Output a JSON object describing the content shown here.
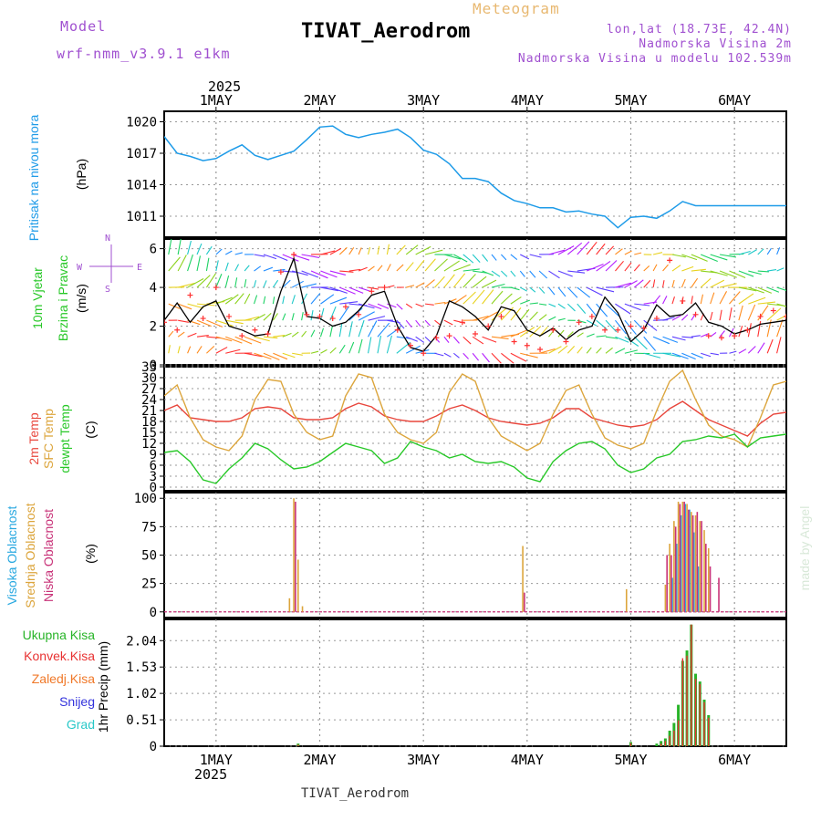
{
  "header": {
    "model_label": "Model",
    "model_name": "wrf-nmm_v3.9.1 e1km",
    "product": "Meteogram",
    "station": "TIVAT_Aerodrom",
    "lonlat": "lon,lat (18.73E, 42.4N)",
    "altitude": "Nadmorska Visina 2m",
    "model_altitude": "Nadmorska Visina u modelu 102.539m"
  },
  "footer": {
    "station": "TIVAT_Aerodrom"
  },
  "watermark": "made by Angel",
  "time_axis": {
    "year": "2025",
    "days": [
      "1MAY",
      "2MAY",
      "3MAY",
      "4MAY",
      "5MAY",
      "6MAY"
    ],
    "range_hours": [
      -12,
      132
    ],
    "day_start_hours": [
      0,
      24,
      48,
      72,
      96,
      120
    ]
  },
  "labels": {
    "pressure": [
      "Pritisak na nivou mora"
    ],
    "pressure_unit": "(hPa)",
    "wind": [
      "10m Vjetar",
      "Brzina i Pravac"
    ],
    "wind_unit": "(m/s)",
    "compass": {
      "n": "N",
      "s": "S",
      "e": "E",
      "w": "W"
    },
    "temp": [
      "2m Temp",
      "SFC Temp",
      "dewpt Temp"
    ],
    "temp_unit": "(C)",
    "cloud": [
      "Visoka Oblacnost",
      "Srednja Oblacnost",
      "Niska Oblacnost"
    ],
    "cloud_unit": "(%)",
    "precip": [
      "Ukupna Kisa",
      "Konvek.Kisa",
      "Zaledj.Kisa",
      "Snijeg",
      "Grad"
    ],
    "precip_unit": "1hr Precip (mm)"
  },
  "colors": {
    "pressure": "#1e9be8",
    "temp2m": "#e8463c",
    "sfc": "#dca53c",
    "dewpt": "#28c828",
    "wind_speed": "#000000",
    "gust": "#ff3030",
    "high_cloud": "#28a8e0",
    "mid_cloud": "#dca53c",
    "low_cloud": "#c83278",
    "precip_total": "#28b428",
    "precip_conv": "#e83232",
    "precip_frz": "#f07828",
    "precip_snow": "#3232dc",
    "precip_hail": "#28c8c8",
    "title": "#000000",
    "purple": "#a050d0"
  },
  "chart_data": [
    {
      "type": "line",
      "name_key": "pressure",
      "ylim": [
        1009,
        1021
      ],
      "yticks": [
        "1011",
        "1014",
        "1017",
        "1020"
      ],
      "x": [
        -12,
        -9,
        -6,
        -3,
        0,
        3,
        6,
        9,
        12,
        15,
        18,
        21,
        24,
        27,
        30,
        33,
        36,
        39,
        42,
        45,
        48,
        51,
        54,
        57,
        60,
        63,
        66,
        69,
        72,
        75,
        78,
        81,
        84,
        87,
        90,
        93,
        96,
        99,
        102,
        105,
        108,
        111,
        114,
        117,
        120,
        123,
        126,
        129,
        132
      ],
      "series": [
        {
          "values": [
            1018.6,
            1017.0,
            1016.7,
            1016.3,
            1016.5,
            1017.2,
            1017.8,
            1016.8,
            1016.4,
            1016.8,
            1017.2,
            1018.3,
            1019.5,
            1019.6,
            1018.8,
            1018.5,
            1018.8,
            1019.0,
            1019.3,
            1018.5,
            1017.3,
            1016.9,
            1016.0,
            1014.6,
            1014.6,
            1014.3,
            1013.2,
            1012.5,
            1012.2,
            1011.8,
            1011.8,
            1011.4,
            1011.5,
            1011.2,
            1011.0,
            1009.9,
            1010.9,
            1011.0,
            1010.8,
            1011.5,
            1012.4,
            1012.0,
            1012.0,
            1012.0,
            1012.0,
            1012.0,
            1012.0,
            1012.0,
            1012.0
          ]
        }
      ]
    },
    {
      "type": "line",
      "name_key": "wind",
      "ylim": [
        0,
        6.5
      ],
      "yticks": [
        "0",
        "2",
        "4",
        "6"
      ],
      "x": [
        -12,
        -9,
        -6,
        -3,
        0,
        3,
        6,
        9,
        12,
        15,
        18,
        21,
        24,
        27,
        30,
        33,
        36,
        39,
        42,
        45,
        48,
        51,
        54,
        57,
        60,
        63,
        66,
        69,
        72,
        75,
        78,
        81,
        84,
        87,
        90,
        93,
        96,
        99,
        102,
        105,
        108,
        111,
        114,
        117,
        120,
        123,
        126,
        129,
        132
      ],
      "series": [
        {
          "role": "speed",
          "values": [
            2.3,
            3.2,
            2.2,
            3.0,
            3.3,
            2.0,
            1.8,
            1.5,
            1.6,
            3.8,
            5.5,
            2.5,
            2.4,
            2.0,
            2.2,
            2.8,
            3.6,
            3.8,
            2.0,
            0.9,
            0.7,
            1.5,
            3.3,
            3.0,
            2.5,
            1.8,
            3.0,
            2.8,
            1.8,
            1.5,
            1.9,
            1.3,
            1.8,
            2.0,
            3.5,
            2.7,
            1.2,
            1.8,
            3.1,
            2.5,
            2.6,
            3.2,
            2.2,
            2.0,
            1.6,
            1.8,
            2.1,
            2.2,
            2.3
          ]
        },
        {
          "role": "gust",
          "values": [
            2.2,
            1.8,
            3.6,
            2.4,
            4.0,
            2.5,
            1.5,
            1.8,
            1.6,
            4.8,
            5.7,
            2.6,
            2.5,
            2.4,
            3.0,
            2.6,
            3.8,
            4.0,
            1.8,
            1.0,
            0.6,
            1.4,
            1.5,
            2.2,
            1.6,
            2.0,
            2.5,
            1.2,
            1.0,
            0.8,
            1.8,
            1.2,
            2.2,
            2.5,
            1.8,
            1.8,
            2.0,
            1.9,
            2.4,
            5.4,
            3.3,
            2.6,
            1.5,
            1.4,
            1.5,
            1.8,
            2.5,
            2.8,
            2.5
          ]
        }
      ]
    },
    {
      "type": "line",
      "name_key": "temp",
      "ylim": [
        -1,
        33
      ],
      "yticks": [
        "0",
        "3",
        "6",
        "9",
        "12",
        "15",
        "18",
        "21",
        "24",
        "27",
        "30",
        "33"
      ],
      "x": [
        -12,
        -9,
        -6,
        -3,
        0,
        3,
        6,
        9,
        12,
        15,
        18,
        21,
        24,
        27,
        30,
        33,
        36,
        39,
        42,
        45,
        48,
        51,
        54,
        57,
        60,
        63,
        66,
        69,
        72,
        75,
        78,
        81,
        84,
        87,
        90,
        93,
        96,
        99,
        102,
        105,
        108,
        111,
        114,
        117,
        120,
        123,
        126,
        129,
        132
      ],
      "series": [
        {
          "key": "temp2m",
          "values": [
            21.0,
            22.5,
            19.0,
            18.5,
            18.0,
            18.0,
            19.0,
            21.5,
            22.0,
            21.5,
            19.0,
            18.5,
            18.5,
            19.0,
            21.5,
            23.0,
            22.0,
            19.5,
            18.5,
            18.0,
            18.0,
            19.5,
            21.5,
            22.5,
            21.0,
            19.0,
            18.0,
            17.5,
            17.0,
            17.5,
            19.0,
            21.5,
            21.5,
            19.0,
            18.0,
            17.0,
            16.5,
            17.0,
            18.5,
            21.5,
            23.5,
            21.0,
            18.5,
            17.0,
            15.5,
            14.0,
            17.5,
            20.0,
            20.5
          ]
        },
        {
          "key": "sfc",
          "values": [
            25.0,
            28.0,
            19.0,
            13.0,
            11.0,
            10.0,
            14.0,
            24.0,
            29.5,
            29.0,
            20.0,
            15.0,
            13.0,
            14.0,
            25.0,
            31.0,
            30.0,
            20.0,
            15.0,
            13.0,
            12.0,
            15.0,
            26.0,
            31.0,
            29.0,
            19.0,
            14.0,
            12.0,
            10.0,
            12.0,
            20.0,
            26.5,
            28.0,
            20.0,
            13.5,
            11.5,
            10.5,
            12.0,
            21.0,
            29.0,
            32.0,
            24.0,
            17.0,
            14.0,
            13.0,
            11.0,
            19.0,
            28.0,
            29.0
          ]
        },
        {
          "key": "dewpt",
          "values": [
            9.5,
            10.0,
            7.0,
            2.0,
            1.0,
            5.0,
            8.0,
            12.0,
            10.5,
            7.5,
            5.0,
            5.5,
            7.0,
            9.5,
            12.0,
            11.0,
            10.0,
            6.5,
            8.0,
            12.5,
            11.0,
            10.0,
            8.0,
            9.0,
            7.0,
            6.5,
            7.0,
            5.5,
            2.5,
            1.5,
            7.0,
            10.0,
            12.0,
            12.5,
            10.5,
            6.0,
            4.0,
            5.0,
            8.0,
            9.0,
            12.5,
            13.0,
            14.0,
            13.5,
            14.5,
            11.0,
            13.5,
            14.0,
            14.5
          ]
        }
      ]
    },
    {
      "type": "bar",
      "name_key": "cloud",
      "ylim": [
        -5,
        105
      ],
      "yticks": [
        "0",
        "25",
        "50",
        "75",
        "100"
      ],
      "series": [
        {
          "key": "high_cloud",
          "x": [
            106,
            107,
            108,
            109,
            110,
            111,
            112
          ],
          "values": [
            30,
            60,
            85,
            95,
            90,
            70,
            40
          ]
        },
        {
          "key": "mid_cloud",
          "x": [
            17,
            18,
            19,
            20,
            71,
            95,
            104,
            105,
            106,
            107,
            108,
            109,
            110,
            111,
            112,
            113,
            114
          ],
          "values": [
            12,
            100,
            46,
            5,
            58,
            20,
            24,
            60,
            80,
            97,
            97,
            95,
            88,
            85,
            80,
            72,
            56
          ]
        },
        {
          "key": "low_cloud",
          "x": [
            17,
            18,
            71,
            104,
            105,
            106,
            107,
            108,
            109,
            110,
            111,
            112,
            113,
            114,
            116
          ],
          "values": [
            0,
            97,
            17,
            50,
            50,
            75,
            95,
            97,
            90,
            85,
            88,
            80,
            60,
            40,
            30
          ]
        }
      ]
    },
    {
      "type": "bar",
      "name_key": "precip",
      "ylim": [
        0,
        2.45
      ],
      "yticks": [
        "0",
        "0.51",
        "1.02",
        "1.53",
        "2.04"
      ],
      "series": [
        {
          "key": "precip_total",
          "x": [
            19,
            96,
            102,
            103,
            104,
            105,
            106,
            107,
            108,
            109,
            110,
            111,
            112,
            113,
            114
          ],
          "values": [
            0.05,
            0.08,
            0.05,
            0.1,
            0.15,
            0.3,
            0.45,
            0.8,
            1.65,
            1.85,
            2.35,
            1.4,
            1.25,
            0.9,
            0.6
          ]
        },
        {
          "key": "precip_conv",
          "x": [
            19,
            96,
            103,
            104,
            105,
            106,
            107,
            108,
            109,
            110,
            111,
            112,
            113,
            114
          ],
          "values": [
            0.03,
            0.06,
            0.05,
            0.1,
            0.2,
            0.3,
            0.5,
            1.7,
            1.75,
            2.35,
            1.3,
            1.2,
            0.85,
            0.55
          ]
        }
      ]
    }
  ]
}
